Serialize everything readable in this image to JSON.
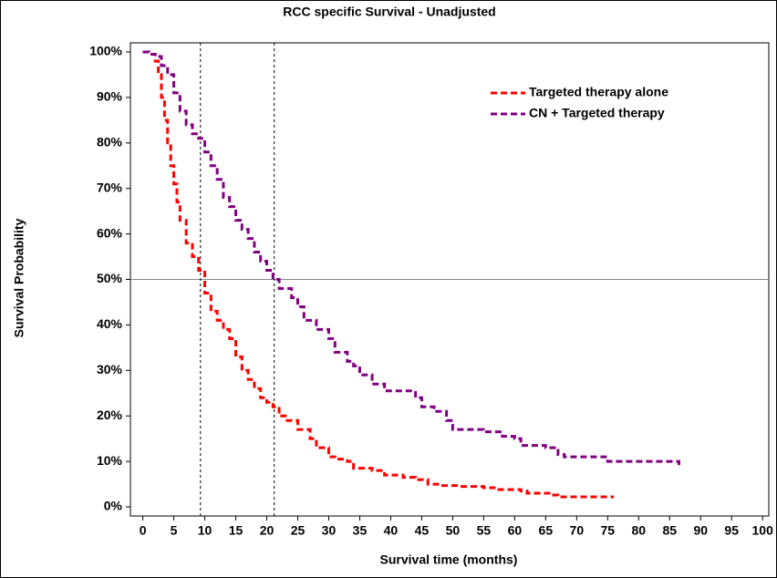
{
  "chart_data": {
    "type": "step",
    "title": "RCC specific Survival - Unadjusted",
    "x_label": "Survival time (months)",
    "y_label": "Survival Probability",
    "xlim": [
      -2,
      101
    ],
    "ylim": [
      -2,
      102
    ],
    "xticks": [
      0,
      5,
      10,
      15,
      20,
      25,
      30,
      35,
      40,
      45,
      50,
      55,
      60,
      65,
      70,
      75,
      80,
      85,
      90,
      95,
      100
    ],
    "yticks": [
      {
        "value": 0,
        "label": "0%"
      },
      {
        "value": 10,
        "label": "10%"
      },
      {
        "value": 20,
        "label": "20%"
      },
      {
        "value": 30,
        "label": "30%"
      },
      {
        "value": 40,
        "label": "40%"
      },
      {
        "value": 50,
        "label": "50%"
      },
      {
        "value": 60,
        "label": "60%"
      },
      {
        "value": 70,
        "label": "70%"
      },
      {
        "value": 80,
        "label": "80%"
      },
      {
        "value": 90,
        "label": "90%"
      },
      {
        "value": 100,
        "label": "100%"
      }
    ],
    "reference_lines": {
      "y": [
        50
      ],
      "x": [
        9.3,
        21.2
      ]
    },
    "legend": "upper right",
    "series": [
      {
        "name": "Targeted therapy alone",
        "color": "#ff0000",
        "x": [
          0,
          1,
          2,
          2.5,
          3,
          3.5,
          4,
          4.5,
          5,
          5.5,
          6,
          7,
          8,
          9,
          10,
          11,
          12,
          13,
          14,
          15,
          16,
          17,
          18,
          19,
          20,
          21,
          22,
          23,
          25,
          27,
          28,
          30,
          31,
          33,
          34,
          37,
          39,
          42,
          44,
          46,
          48,
          51,
          55,
          57,
          61,
          62,
          66,
          67,
          76
        ],
        "values": [
          100,
          99.5,
          98,
          95,
          90,
          85,
          80,
          75,
          71,
          67,
          63,
          58,
          55,
          52,
          47,
          43,
          41,
          39,
          37,
          33,
          30,
          28,
          26,
          24,
          23,
          22,
          20,
          19,
          17,
          15,
          13,
          11,
          10.5,
          10,
          8.5,
          8,
          7,
          6.5,
          6,
          5,
          4.7,
          4.5,
          4.2,
          3.8,
          3.5,
          3,
          2.6,
          2.2,
          2.2
        ]
      },
      {
        "name": "CN + Targeted therapy",
        "color": "#800080",
        "x": [
          0,
          1,
          2,
          3,
          4,
          5,
          6,
          7,
          8,
          9,
          10,
          11,
          12,
          13,
          14,
          15,
          16,
          17,
          18,
          19,
          20,
          21,
          22,
          24,
          25,
          26,
          28,
          30,
          31,
          33,
          34,
          35,
          37,
          39,
          44,
          45,
          47,
          49,
          50,
          55,
          58,
          60,
          61,
          65,
          67,
          68,
          75,
          86,
          86.5
        ],
        "values": [
          100,
          99.5,
          99,
          97,
          95,
          91,
          87,
          84,
          82,
          81,
          78,
          75,
          72,
          68,
          66,
          63,
          61,
          59,
          56,
          54,
          52,
          50,
          48,
          46,
          44,
          41,
          39,
          37,
          34,
          32,
          31,
          29,
          27,
          25.5,
          24,
          22,
          21,
          19,
          17,
          16.5,
          15.5,
          15,
          13.5,
          13,
          11.5,
          11,
          10,
          10,
          9
        ]
      }
    ]
  }
}
